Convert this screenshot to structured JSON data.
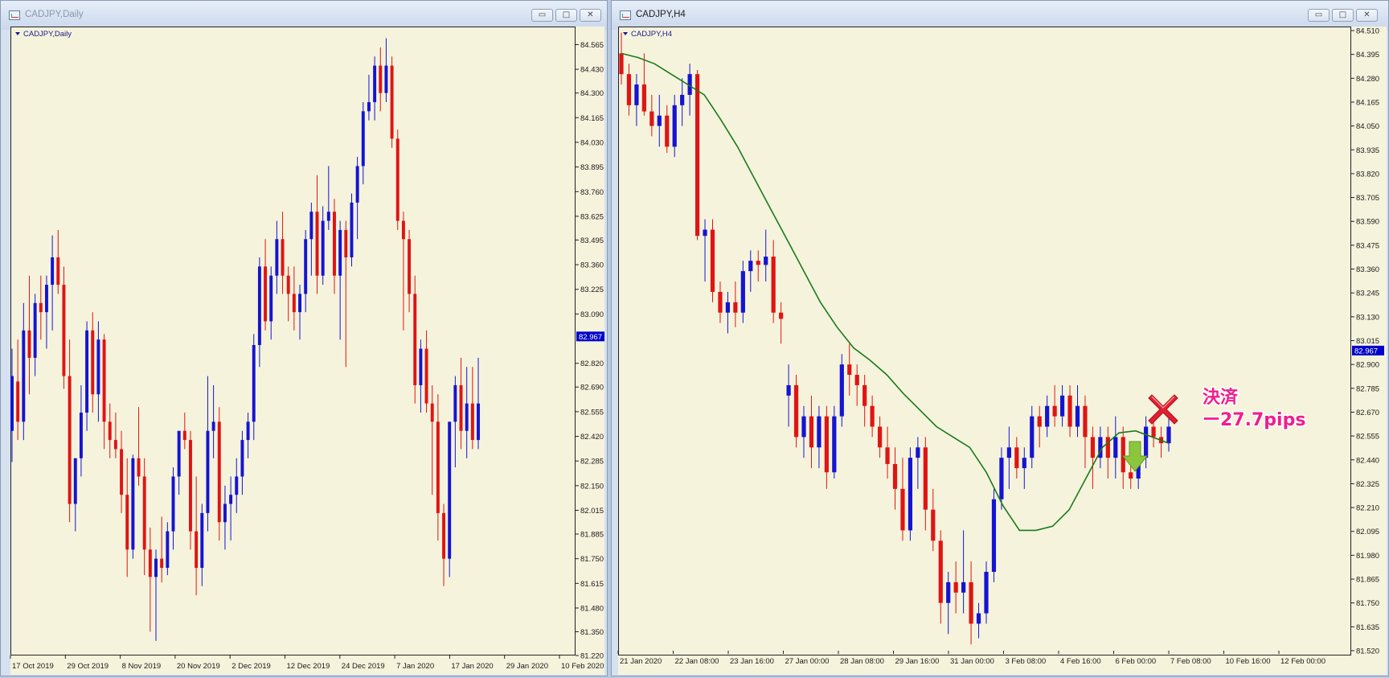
{
  "windows": [
    {
      "id": "left",
      "title": "CADJPY,Daily",
      "chart_label": "CADJPY,Daily",
      "controls": {
        "minimize": "▭",
        "maximize": "□",
        "close": "✕"
      }
    },
    {
      "id": "right",
      "title": "CADJPY,H4",
      "chart_label": "CADJPY,H4",
      "controls": {
        "minimize": "▭",
        "maximize": "□",
        "close": "✕"
      }
    }
  ],
  "annotation": {
    "line1": "決済",
    "line2": "ー27.7pips"
  },
  "colors": {
    "up": "#1414d2",
    "down": "#e01414",
    "ma": "#1a7a1a",
    "background": "#f5f3dc",
    "price_tag": "#0000cc"
  },
  "chart_data": [
    {
      "type": "candlestick",
      "title": "CADJPY,Daily",
      "ylim": [
        81.22,
        84.62
      ],
      "y_ticks": [
        "84.565",
        "84.430",
        "84.300",
        "84.165",
        "84.030",
        "83.895",
        "83.760",
        "83.625",
        "83.495",
        "83.360",
        "83.225",
        "83.090",
        "82.967",
        "82.820",
        "82.690",
        "82.555",
        "82.420",
        "82.285",
        "82.150",
        "82.015",
        "81.885",
        "81.750",
        "81.615",
        "81.480",
        "81.350",
        "81.220"
      ],
      "x_ticks": [
        "17 Oct 2019",
        "29 Oct 2019",
        "8 Nov 2019",
        "20 Nov 2019",
        "2 Dec 2019",
        "12 Dec 2019",
        "24 Dec 2019",
        "7 Jan 2020",
        "17 Jan 2020",
        "29 Jan 2020",
        "10 Feb 2020"
      ],
      "current_price": "82.967",
      "candles": [
        {
          "o": 82.45,
          "h": 82.9,
          "l": 82.28,
          "c": 82.75
        },
        {
          "o": 82.72,
          "h": 82.95,
          "l": 82.4,
          "c": 82.5
        },
        {
          "o": 82.5,
          "h": 83.15,
          "l": 82.4,
          "c": 83.0
        },
        {
          "o": 83.0,
          "h": 83.3,
          "l": 82.65,
          "c": 82.85
        },
        {
          "o": 82.85,
          "h": 83.2,
          "l": 82.75,
          "c": 83.15
        },
        {
          "o": 83.15,
          "h": 83.3,
          "l": 82.95,
          "c": 83.1
        },
        {
          "o": 83.1,
          "h": 83.3,
          "l": 82.9,
          "c": 83.25
        },
        {
          "o": 83.25,
          "h": 83.52,
          "l": 83.0,
          "c": 83.4
        },
        {
          "o": 83.4,
          "h": 83.55,
          "l": 83.2,
          "c": 83.25
        },
        {
          "o": 83.25,
          "h": 83.35,
          "l": 82.68,
          "c": 82.75
        },
        {
          "o": 82.75,
          "h": 82.95,
          "l": 81.95,
          "c": 82.05
        },
        {
          "o": 82.05,
          "h": 82.3,
          "l": 81.9,
          "c": 82.3
        },
        {
          "o": 82.3,
          "h": 82.7,
          "l": 82.2,
          "c": 82.55
        },
        {
          "o": 82.55,
          "h": 83.05,
          "l": 82.45,
          "c": 83.0
        },
        {
          "o": 83.0,
          "h": 83.1,
          "l": 82.55,
          "c": 82.65
        },
        {
          "o": 82.65,
          "h": 83.05,
          "l": 82.5,
          "c": 82.95
        },
        {
          "o": 82.95,
          "h": 82.98,
          "l": 82.35,
          "c": 82.5
        },
        {
          "o": 82.5,
          "h": 82.6,
          "l": 82.3,
          "c": 82.4
        },
        {
          "o": 82.4,
          "h": 82.55,
          "l": 82.3,
          "c": 82.35
        },
        {
          "o": 82.35,
          "h": 82.45,
          "l": 82.0,
          "c": 82.1
        },
        {
          "o": 82.1,
          "h": 82.3,
          "l": 81.65,
          "c": 81.8
        },
        {
          "o": 81.8,
          "h": 82.32,
          "l": 81.75,
          "c": 82.3
        },
        {
          "o": 82.3,
          "h": 82.58,
          "l": 82.15,
          "c": 82.2
        },
        {
          "o": 82.2,
          "h": 82.3,
          "l": 81.66,
          "c": 81.8
        },
        {
          "o": 81.8,
          "h": 81.92,
          "l": 81.35,
          "c": 81.65
        },
        {
          "o": 81.65,
          "h": 81.8,
          "l": 81.3,
          "c": 81.75
        },
        {
          "o": 81.75,
          "h": 81.98,
          "l": 81.62,
          "c": 81.7
        },
        {
          "o": 81.7,
          "h": 81.95,
          "l": 81.66,
          "c": 81.9
        },
        {
          "o": 81.9,
          "h": 82.25,
          "l": 81.8,
          "c": 82.2
        },
        {
          "o": 82.2,
          "h": 82.45,
          "l": 82.1,
          "c": 82.45
        },
        {
          "o": 82.45,
          "h": 82.55,
          "l": 82.35,
          "c": 82.4
        },
        {
          "o": 82.4,
          "h": 82.45,
          "l": 81.8,
          "c": 81.9
        },
        {
          "o": 81.9,
          "h": 82.2,
          "l": 81.55,
          "c": 81.7
        },
        {
          "o": 81.7,
          "h": 82.05,
          "l": 81.6,
          "c": 82.0
        },
        {
          "o": 82.0,
          "h": 82.75,
          "l": 81.9,
          "c": 82.45
        },
        {
          "o": 82.45,
          "h": 82.7,
          "l": 82.3,
          "c": 82.5
        },
        {
          "o": 82.5,
          "h": 82.58,
          "l": 81.85,
          "c": 81.95
        },
        {
          "o": 81.95,
          "h": 82.15,
          "l": 81.8,
          "c": 82.05
        },
        {
          "o": 82.05,
          "h": 82.2,
          "l": 81.85,
          "c": 82.1
        },
        {
          "o": 82.1,
          "h": 82.3,
          "l": 82.0,
          "c": 82.2
        },
        {
          "o": 82.2,
          "h": 82.45,
          "l": 82.1,
          "c": 82.4
        },
        {
          "o": 82.4,
          "h": 82.55,
          "l": 82.3,
          "c": 82.5
        },
        {
          "o": 82.5,
          "h": 82.98,
          "l": 82.4,
          "c": 82.92
        },
        {
          "o": 82.92,
          "h": 83.4,
          "l": 82.8,
          "c": 83.35
        },
        {
          "o": 83.35,
          "h": 83.5,
          "l": 83.0,
          "c": 83.05
        },
        {
          "o": 83.05,
          "h": 83.35,
          "l": 82.95,
          "c": 83.3
        },
        {
          "o": 83.3,
          "h": 83.6,
          "l": 83.2,
          "c": 83.5
        },
        {
          "o": 83.5,
          "h": 83.65,
          "l": 83.2,
          "c": 83.3
        },
        {
          "o": 83.3,
          "h": 83.35,
          "l": 83.05,
          "c": 83.2
        },
        {
          "o": 83.2,
          "h": 83.35,
          "l": 83.0,
          "c": 83.1
        },
        {
          "o": 83.1,
          "h": 83.25,
          "l": 82.95,
          "c": 83.2
        },
        {
          "o": 83.2,
          "h": 83.55,
          "l": 83.1,
          "c": 83.5
        },
        {
          "o": 83.5,
          "h": 83.7,
          "l": 83.3,
          "c": 83.65
        },
        {
          "o": 83.65,
          "h": 83.85,
          "l": 83.2,
          "c": 83.3
        },
        {
          "o": 83.3,
          "h": 83.68,
          "l": 83.25,
          "c": 83.6
        },
        {
          "o": 83.6,
          "h": 83.9,
          "l": 83.55,
          "c": 83.65
        },
        {
          "o": 83.65,
          "h": 83.72,
          "l": 83.2,
          "c": 83.3
        },
        {
          "o": 83.3,
          "h": 83.6,
          "l": 82.95,
          "c": 83.55
        },
        {
          "o": 83.55,
          "h": 83.6,
          "l": 82.8,
          "c": 83.4
        },
        {
          "o": 83.4,
          "h": 83.75,
          "l": 83.35,
          "c": 83.7
        },
        {
          "o": 83.7,
          "h": 83.95,
          "l": 83.5,
          "c": 83.9
        },
        {
          "o": 83.9,
          "h": 84.25,
          "l": 83.8,
          "c": 84.2
        },
        {
          "o": 84.2,
          "h": 84.4,
          "l": 84.15,
          "c": 84.25
        },
        {
          "o": 84.25,
          "h": 84.5,
          "l": 84.15,
          "c": 84.45
        },
        {
          "o": 84.45,
          "h": 84.55,
          "l": 84.2,
          "c": 84.3
        },
        {
          "o": 84.3,
          "h": 84.6,
          "l": 84.25,
          "c": 84.45
        },
        {
          "o": 84.45,
          "h": 84.5,
          "l": 84.0,
          "c": 84.05
        },
        {
          "o": 84.05,
          "h": 84.1,
          "l": 83.55,
          "c": 83.6
        },
        {
          "o": 83.6,
          "h": 83.65,
          "l": 83.0,
          "c": 83.5
        },
        {
          "o": 83.5,
          "h": 83.55,
          "l": 83.1,
          "c": 83.2
        },
        {
          "o": 83.2,
          "h": 83.3,
          "l": 82.6,
          "c": 82.7
        },
        {
          "o": 82.7,
          "h": 82.95,
          "l": 82.55,
          "c": 82.9
        },
        {
          "o": 82.9,
          "h": 83.0,
          "l": 82.55,
          "c": 82.6
        },
        {
          "o": 82.6,
          "h": 82.7,
          "l": 82.1,
          "c": 82.5
        },
        {
          "o": 82.5,
          "h": 82.65,
          "l": 81.85,
          "c": 82.0
        },
        {
          "o": 82.0,
          "h": 82.05,
          "l": 81.6,
          "c": 81.75
        },
        {
          "o": 81.75,
          "h": 82.5,
          "l": 81.65,
          "c": 82.5
        },
        {
          "o": 82.5,
          "h": 82.75,
          "l": 82.25,
          "c": 82.7
        },
        {
          "o": 82.7,
          "h": 82.85,
          "l": 82.35,
          "c": 82.45
        },
        {
          "o": 82.45,
          "h": 82.8,
          "l": 82.3,
          "c": 82.6
        },
        {
          "o": 82.6,
          "h": 82.8,
          "l": 82.35,
          "c": 82.4
        },
        {
          "o": 82.4,
          "h": 82.85,
          "l": 82.35,
          "c": 82.6
        }
      ]
    },
    {
      "type": "candlestick",
      "title": "CADJPY,H4",
      "ylim": [
        81.52,
        84.51
      ],
      "y_ticks": [
        "84.510",
        "84.395",
        "84.280",
        "84.165",
        "84.050",
        "83.935",
        "83.820",
        "83.705",
        "83.590",
        "83.475",
        "83.360",
        "83.245",
        "83.130",
        "83.015",
        "82.967",
        "82.900",
        "82.785",
        "82.670",
        "82.555",
        "82.440",
        "82.325",
        "82.210",
        "82.095",
        "81.980",
        "81.865",
        "81.750",
        "81.635",
        "81.520"
      ],
      "x_ticks": [
        "21 Jan 2020",
        "22 Jan 08:00",
        "23 Jan 16:00",
        "27 Jan 00:00",
        "28 Jan 08:00",
        "29 Jan 16:00",
        "31 Jan 00:00",
        "3 Feb 08:00",
        "4 Feb 16:00",
        "6 Feb 00:00",
        "7 Feb 08:00",
        "10 Feb 16:00",
        "12 Feb 00:00"
      ],
      "current_price": "82.967",
      "moving_average_points": [
        84.4,
        84.38,
        84.35,
        84.3,
        84.25,
        84.2,
        84.08,
        83.95,
        83.8,
        83.65,
        83.5,
        83.35,
        83.2,
        83.08,
        82.98,
        82.92,
        82.85,
        82.76,
        82.68,
        82.6,
        82.55,
        82.5,
        82.38,
        82.22,
        82.1,
        82.1,
        82.12,
        82.2,
        82.35,
        82.5,
        82.57,
        82.58,
        82.55,
        82.52
      ],
      "candles": [
        {
          "o": 84.4,
          "h": 84.5,
          "l": 84.25,
          "c": 84.3
        },
        {
          "o": 84.3,
          "h": 84.35,
          "l": 84.1,
          "c": 84.15
        },
        {
          "o": 84.15,
          "h": 84.3,
          "l": 84.05,
          "c": 84.25
        },
        {
          "o": 84.25,
          "h": 84.4,
          "l": 84.1,
          "c": 84.12
        },
        {
          "o": 84.12,
          "h": 84.2,
          "l": 84.0,
          "c": 84.05
        },
        {
          "o": 84.05,
          "h": 84.2,
          "l": 83.95,
          "c": 84.1
        },
        {
          "o": 84.1,
          "h": 84.15,
          "l": 83.92,
          "c": 83.95
        },
        {
          "o": 83.95,
          "h": 84.2,
          "l": 83.9,
          "c": 84.15
        },
        {
          "o": 84.15,
          "h": 84.28,
          "l": 84.05,
          "c": 84.2
        },
        {
          "o": 84.2,
          "h": 84.35,
          "l": 84.1,
          "c": 84.3
        },
        {
          "o": 84.3,
          "h": 84.32,
          "l": 83.5,
          "c": 83.52
        },
        {
          "o": 83.52,
          "h": 83.6,
          "l": 83.3,
          "c": 83.55
        },
        {
          "o": 83.55,
          "h": 83.6,
          "l": 83.2,
          "c": 83.25
        },
        {
          "o": 83.25,
          "h": 83.3,
          "l": 83.1,
          "c": 83.15
        },
        {
          "o": 83.15,
          "h": 83.25,
          "l": 83.05,
          "c": 83.2
        },
        {
          "o": 83.2,
          "h": 83.3,
          "l": 83.08,
          "c": 83.15
        },
        {
          "o": 83.15,
          "h": 83.4,
          "l": 83.1,
          "c": 83.35
        },
        {
          "o": 83.35,
          "h": 83.45,
          "l": 83.25,
          "c": 83.4
        },
        {
          "o": 83.4,
          "h": 83.45,
          "l": 83.3,
          "c": 83.38
        },
        {
          "o": 83.38,
          "h": 83.55,
          "l": 83.3,
          "c": 83.42
        },
        {
          "o": 83.42,
          "h": 83.5,
          "l": 83.1,
          "c": 83.15
        },
        {
          "o": 83.15,
          "h": 83.2,
          "l": 83.0,
          "c": 83.12
        },
        {
          "o": 82.75,
          "h": 82.9,
          "l": 82.6,
          "c": 82.8
        },
        {
          "o": 82.8,
          "h": 82.85,
          "l": 82.5,
          "c": 82.55
        },
        {
          "o": 82.55,
          "h": 82.7,
          "l": 82.45,
          "c": 82.65
        },
        {
          "o": 82.65,
          "h": 82.75,
          "l": 82.4,
          "c": 82.5
        },
        {
          "o": 82.5,
          "h": 82.7,
          "l": 82.4,
          "c": 82.65
        },
        {
          "o": 82.65,
          "h": 82.7,
          "l": 82.3,
          "c": 82.38
        },
        {
          "o": 82.38,
          "h": 82.7,
          "l": 82.35,
          "c": 82.65
        },
        {
          "o": 82.65,
          "h": 82.95,
          "l": 82.6,
          "c": 82.9
        },
        {
          "o": 82.9,
          "h": 83.0,
          "l": 82.75,
          "c": 82.85
        },
        {
          "o": 82.85,
          "h": 82.9,
          "l": 82.7,
          "c": 82.8
        },
        {
          "o": 82.8,
          "h": 82.85,
          "l": 82.6,
          "c": 82.7
        },
        {
          "o": 82.7,
          "h": 82.75,
          "l": 82.55,
          "c": 82.6
        },
        {
          "o": 82.6,
          "h": 82.65,
          "l": 82.45,
          "c": 82.5
        },
        {
          "o": 82.5,
          "h": 82.6,
          "l": 82.35,
          "c": 82.42
        },
        {
          "o": 82.42,
          "h": 82.5,
          "l": 82.2,
          "c": 82.3
        },
        {
          "o": 82.3,
          "h": 82.45,
          "l": 82.05,
          "c": 82.1
        },
        {
          "o": 82.1,
          "h": 82.5,
          "l": 82.05,
          "c": 82.45
        },
        {
          "o": 82.45,
          "h": 82.55,
          "l": 82.3,
          "c": 82.5
        },
        {
          "o": 82.5,
          "h": 82.55,
          "l": 82.1,
          "c": 82.2
        },
        {
          "o": 82.2,
          "h": 82.3,
          "l": 82.0,
          "c": 82.05
        },
        {
          "o": 82.05,
          "h": 82.1,
          "l": 81.65,
          "c": 81.75
        },
        {
          "o": 81.75,
          "h": 81.9,
          "l": 81.6,
          "c": 81.85
        },
        {
          "o": 81.85,
          "h": 81.95,
          "l": 81.7,
          "c": 81.8
        },
        {
          "o": 81.8,
          "h": 82.1,
          "l": 81.7,
          "c": 81.85
        },
        {
          "o": 81.85,
          "h": 81.95,
          "l": 81.55,
          "c": 81.65
        },
        {
          "o": 81.65,
          "h": 81.75,
          "l": 81.58,
          "c": 81.7
        },
        {
          "o": 81.7,
          "h": 81.95,
          "l": 81.65,
          "c": 81.9
        },
        {
          "o": 81.9,
          "h": 82.3,
          "l": 81.85,
          "c": 82.25
        },
        {
          "o": 82.25,
          "h": 82.5,
          "l": 82.2,
          "c": 82.45
        },
        {
          "o": 82.45,
          "h": 82.6,
          "l": 82.3,
          "c": 82.5
        },
        {
          "o": 82.5,
          "h": 82.55,
          "l": 82.35,
          "c": 82.4
        },
        {
          "o": 82.4,
          "h": 82.5,
          "l": 82.3,
          "c": 82.45
        },
        {
          "o": 82.45,
          "h": 82.7,
          "l": 82.4,
          "c": 82.65
        },
        {
          "o": 82.65,
          "h": 82.7,
          "l": 82.5,
          "c": 82.6
        },
        {
          "o": 82.6,
          "h": 82.75,
          "l": 82.55,
          "c": 82.7
        },
        {
          "o": 82.7,
          "h": 82.8,
          "l": 82.6,
          "c": 82.65
        },
        {
          "o": 82.65,
          "h": 82.8,
          "l": 82.6,
          "c": 82.75
        },
        {
          "o": 82.75,
          "h": 82.8,
          "l": 82.55,
          "c": 82.6
        },
        {
          "o": 82.6,
          "h": 82.8,
          "l": 82.55,
          "c": 82.7
        },
        {
          "o": 82.7,
          "h": 82.75,
          "l": 82.4,
          "c": 82.55
        },
        {
          "o": 82.55,
          "h": 82.6,
          "l": 82.3,
          "c": 82.45
        },
        {
          "o": 82.45,
          "h": 82.6,
          "l": 82.4,
          "c": 82.55
        },
        {
          "o": 82.55,
          "h": 82.6,
          "l": 82.35,
          "c": 82.45
        },
        {
          "o": 82.45,
          "h": 82.65,
          "l": 82.35,
          "c": 82.55
        },
        {
          "o": 82.55,
          "h": 82.6,
          "l": 82.3,
          "c": 82.38
        },
        {
          "o": 82.38,
          "h": 82.45,
          "l": 82.3,
          "c": 82.35
        },
        {
          "o": 82.35,
          "h": 82.5,
          "l": 82.3,
          "c": 82.45
        },
        {
          "o": 82.45,
          "h": 82.65,
          "l": 82.4,
          "c": 82.6
        },
        {
          "o": 82.6,
          "h": 82.65,
          "l": 82.5,
          "c": 82.55
        },
        {
          "o": 82.55,
          "h": 82.6,
          "l": 82.45,
          "c": 82.52
        },
        {
          "o": 82.52,
          "h": 82.65,
          "l": 82.48,
          "c": 82.6
        }
      ]
    }
  ]
}
